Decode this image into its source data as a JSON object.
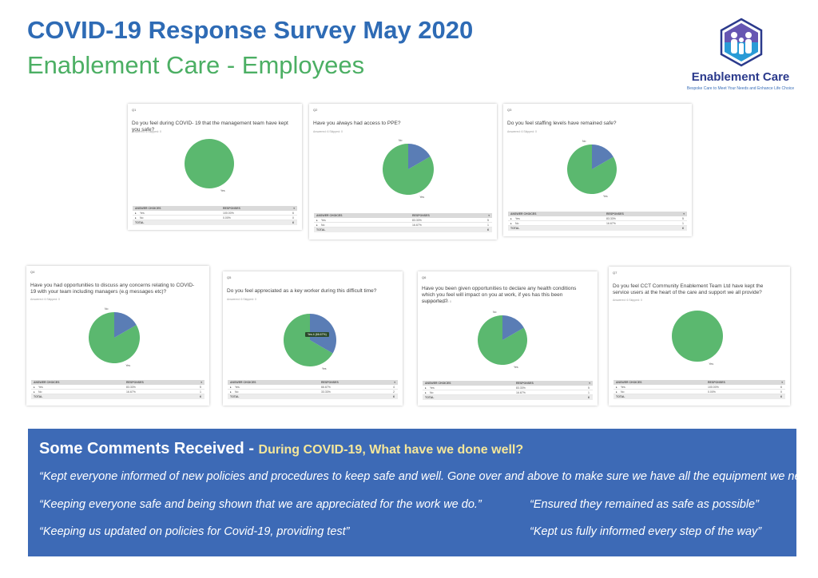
{
  "header": {
    "title": "COVID-19 Response Survey May 2020",
    "subtitle": "Enablement Care - Employees"
  },
  "logo": {
    "name": "Enablement Care",
    "tagline": "Bespoke Care to Meet Your Needs and Enhance Life Choice"
  },
  "colors": {
    "title_blue": "#2e6bb5",
    "subtitle_green": "#4caf64",
    "pie_yes": "#5bb86f",
    "pie_no": "#5a7db5",
    "comments_bg": "#3d6ab6",
    "comments_sub": "#f5e79a"
  },
  "table_headers": {
    "choice": "ANSWER CHOICES",
    "responses": "RESPONSES",
    "total": "TOTAL"
  },
  "questions": [
    {
      "num": "Q1",
      "text": "Do you feel during COVID- 19 that the management team have kept you safe?",
      "meta": "Answered: 6    Skipped: 0",
      "yes_pct": "100.00%",
      "no_pct": "0.00%",
      "yes_count": "6",
      "no_count": "0",
      "total": "6",
      "yes_label": "Yes",
      "no_label": "No"
    },
    {
      "num": "Q2",
      "text": "Have you always had access to PPE?",
      "meta": "Answered: 6    Skipped: 0",
      "yes_pct": "83.33%",
      "no_pct": "16.67%",
      "yes_count": "5",
      "no_count": "1",
      "total": "6",
      "yes_label": "Yes",
      "no_label": "No"
    },
    {
      "num": "Q3",
      "text": "Do you feel staffing levels have remained safe?",
      "meta": "Answered: 6    Skipped: 0",
      "yes_pct": "83.33%",
      "no_pct": "16.67%",
      "yes_count": "5",
      "no_count": "1",
      "total": "6",
      "yes_label": "Yes",
      "no_label": "No"
    },
    {
      "num": "Q4",
      "text": "Have you had opportunities to discuss any concerns relating to COVID-19 with your team including managers (e.g messages etc)?",
      "meta": "Answered: 6    Skipped: 0",
      "yes_pct": "83.33%",
      "no_pct": "16.67%",
      "yes_count": "5",
      "no_count": "1",
      "total": "6",
      "yes_label": "Yes",
      "no_label": "No"
    },
    {
      "num": "Q5",
      "text": "Do you feel appreciated as a key worker during this difficult time?",
      "meta": "Answered: 6    Skipped: 0",
      "yes_pct": "66.67%",
      "no_pct": "33.33%",
      "yes_count": "4",
      "no_count": "2",
      "total": "6",
      "yes_label": "Yes",
      "no_label": "No",
      "tooltip": "Yes 4 (66.67%)"
    },
    {
      "num": "Q6",
      "text": "Have you been given opportunities to declare any health conditions which you feel will impact on you at work, if yes has this been supported?",
      "meta": "Answered: 6    Skipped: 0",
      "yes_pct": "83.33%",
      "no_pct": "16.67%",
      "yes_count": "5",
      "no_count": "1",
      "total": "6",
      "yes_label": "Yes",
      "no_label": "No"
    },
    {
      "num": "Q7",
      "text": "Do you feel CCT Community Enablement Team Ltd have kept the service users at the heart of the care and support we all provide?",
      "meta": "Answered: 6    Skipped: 0",
      "yes_pct": "100.00%",
      "no_pct": "0.00%",
      "yes_count": "6",
      "no_count": "0",
      "total": "6",
      "yes_label": "Yes",
      "no_label": "No"
    }
  ],
  "chart_data": [
    {
      "type": "pie",
      "title": "Do you feel during COVID- 19 that the management team have kept you safe?",
      "categories": [
        "Yes",
        "No"
      ],
      "values": [
        100,
        0
      ]
    },
    {
      "type": "pie",
      "title": "Have you always had access to PPE?",
      "categories": [
        "Yes",
        "No"
      ],
      "values": [
        83.33,
        16.67
      ]
    },
    {
      "type": "pie",
      "title": "Do you feel staffing levels have remained safe?",
      "categories": [
        "Yes",
        "No"
      ],
      "values": [
        83.33,
        16.67
      ]
    },
    {
      "type": "pie",
      "title": "Have you had opportunities to discuss any concerns relating to COVID-19 with your team including managers (e.g messages etc)?",
      "categories": [
        "Yes",
        "No"
      ],
      "values": [
        83.33,
        16.67
      ]
    },
    {
      "type": "pie",
      "title": "Do you feel appreciated as a key worker during this difficult time?",
      "categories": [
        "Yes",
        "No"
      ],
      "values": [
        66.67,
        33.33
      ]
    },
    {
      "type": "pie",
      "title": "Have you been given opportunities to declare any health conditions which you feel will impact on you at work, if yes has this been supported?",
      "categories": [
        "Yes",
        "No"
      ],
      "values": [
        83.33,
        16.67
      ]
    },
    {
      "type": "pie",
      "title": "Do you feel CCT Community Enablement Team Ltd have kept the service users at the heart of the care and support we all provide?",
      "categories": [
        "Yes",
        "No"
      ],
      "values": [
        100,
        0
      ]
    }
  ],
  "comments": {
    "title": "Some Comments Received - ",
    "subtitle": "During COVID-19, What have we done well?",
    "quotes": [
      "“Kept everyone informed of new policies and procedures to keep safe and well. Gone over and above to make sure we have all the equipment we need.”",
      "“Keeping everyone safe and being shown that we are appreciated for the work we do.”",
      "“Ensured they remained as safe as possible”",
      "“Keeping us updated on policies for Covid-19, providing test”",
      "“Kept us fully informed every step of the way”"
    ]
  }
}
